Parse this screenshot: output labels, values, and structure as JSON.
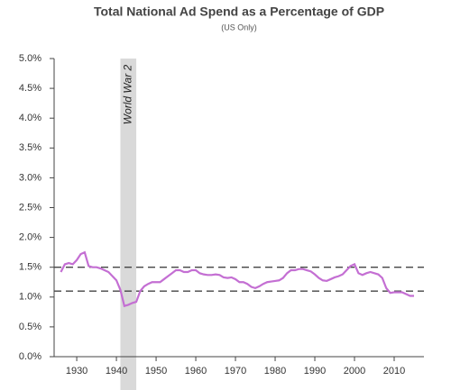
{
  "chart_data": {
    "type": "line",
    "title": "Total National Ad Spend as a Percentage of GDP",
    "subtitle": "(US Only)",
    "x": [
      1926,
      1927,
      1928,
      1929,
      1930,
      1931,
      1932,
      1933,
      1934,
      1935,
      1936,
      1937,
      1938,
      1939,
      1940,
      1941,
      1942,
      1943,
      1944,
      1945,
      1946,
      1947,
      1948,
      1949,
      1950,
      1951,
      1952,
      1953,
      1954,
      1955,
      1956,
      1957,
      1958,
      1959,
      1960,
      1961,
      1962,
      1963,
      1964,
      1965,
      1966,
      1967,
      1968,
      1969,
      1970,
      1971,
      1972,
      1973,
      1974,
      1975,
      1976,
      1977,
      1978,
      1979,
      1980,
      1981,
      1982,
      1983,
      1984,
      1985,
      1986,
      1987,
      1988,
      1989,
      1990,
      1991,
      1992,
      1993,
      1994,
      1995,
      1996,
      1997,
      1998,
      1999,
      2000,
      2001,
      2002,
      2003,
      2004,
      2005,
      2006,
      2007,
      2008,
      2009,
      2010,
      2011,
      2012,
      2013,
      2014,
      2015
    ],
    "series": [
      {
        "color": "#c46fd3",
        "values": [
          1.42,
          1.55,
          1.57,
          1.55,
          1.62,
          1.72,
          1.75,
          1.52,
          1.5,
          1.5,
          1.48,
          1.45,
          1.42,
          1.35,
          1.28,
          1.12,
          0.85,
          0.87,
          0.9,
          0.92,
          1.1,
          1.18,
          1.22,
          1.25,
          1.25,
          1.25,
          1.3,
          1.35,
          1.4,
          1.45,
          1.45,
          1.42,
          1.42,
          1.45,
          1.45,
          1.4,
          1.38,
          1.37,
          1.37,
          1.38,
          1.37,
          1.33,
          1.32,
          1.33,
          1.3,
          1.25,
          1.25,
          1.22,
          1.17,
          1.15,
          1.18,
          1.22,
          1.25,
          1.26,
          1.27,
          1.28,
          1.32,
          1.4,
          1.45,
          1.45,
          1.47,
          1.47,
          1.45,
          1.43,
          1.38,
          1.32,
          1.28,
          1.27,
          1.3,
          1.33,
          1.35,
          1.38,
          1.45,
          1.52,
          1.55,
          1.4,
          1.37,
          1.4,
          1.42,
          1.4,
          1.38,
          1.32,
          1.15,
          1.07,
          1.08,
          1.08,
          1.08,
          1.05,
          1.02,
          1.02
        ]
      }
    ],
    "xlim": [
      1924.3,
      2017.5
    ],
    "xticks": [
      1930,
      1940,
      1950,
      1960,
      1970,
      1980,
      1990,
      2000,
      2010
    ],
    "ylim": [
      0,
      5
    ],
    "yticks": [
      {
        "value": 0,
        "label": "0.0%"
      },
      {
        "value": 0.5,
        "label": "0.5%"
      },
      {
        "value": 1,
        "label": "1.0%"
      },
      {
        "value": 1.5,
        "label": "1.5%"
      },
      {
        "value": 2,
        "label": "2.0%"
      },
      {
        "value": 2.5,
        "label": "2.5%"
      },
      {
        "value": 3,
        "label": "3.0%"
      },
      {
        "value": 3.5,
        "label": "3.5%"
      },
      {
        "value": 4,
        "label": "4.0%"
      },
      {
        "value": 4.5,
        "label": "4.5%"
      },
      {
        "value": 5,
        "label": "5.0%"
      }
    ],
    "reference_lines": [
      1.5,
      1.1
    ],
    "shaded_span": {
      "xlim": [
        1941,
        1945
      ],
      "label": "World War 2"
    }
  }
}
